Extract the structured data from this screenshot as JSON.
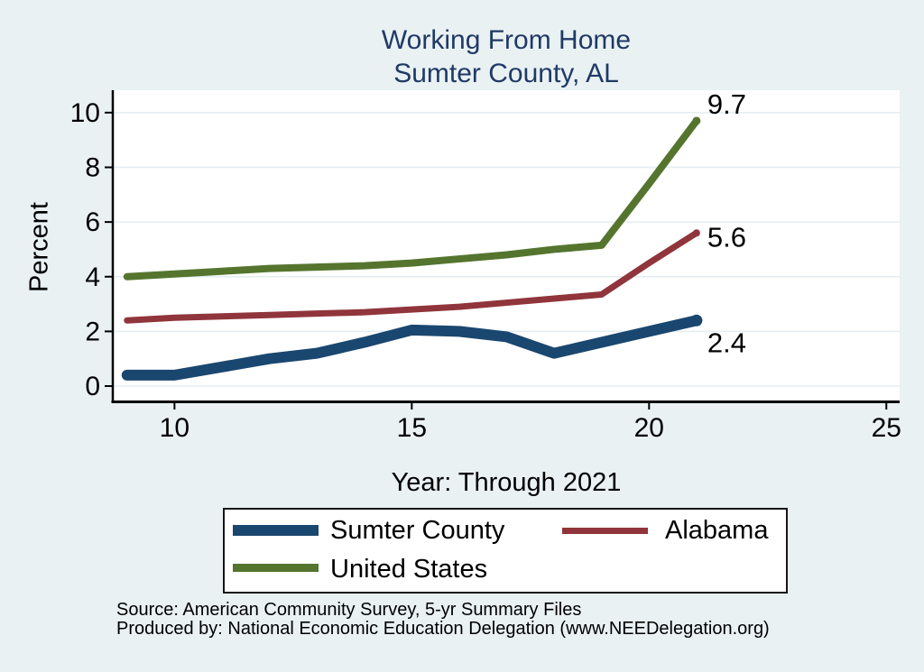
{
  "notes": {
    "source": "Source: American Community Survey, 5-yr Summary Files",
    "produced_by": "Produced by: National Economic Education Delegation (www.NEEDelegation.org)"
  },
  "colors": {
    "page_background": "#e9f1f3",
    "plot_background": "#ffffff",
    "gridline": "#e3edf0",
    "axis": "#000000",
    "title_text": "#203a66",
    "label_text": "#000000",
    "legend_border": "#161616"
  },
  "chart_data": {
    "type": "line",
    "title": "Working From Home",
    "subtitle": "Sumter County, AL",
    "xlabel": "Year: Through 2021",
    "ylabel": "Percent",
    "x_note": "two-digit years, data 2009 through 2021",
    "x": [
      9,
      10,
      11,
      12,
      13,
      14,
      15,
      16,
      17,
      18,
      19,
      20,
      21
    ],
    "x_ticks": [
      10,
      15,
      20,
      25
    ],
    "y_ticks": [
      0,
      2,
      4,
      6,
      8,
      10
    ],
    "xlim": [
      8.7,
      25.28
    ],
    "ylim": [
      -0.56,
      10.82
    ],
    "grid": true,
    "legend_position": "bottom",
    "series": [
      {
        "name": "Sumter County",
        "color": "#1a476f",
        "line_width": 12,
        "end_label": "2.4",
        "end_label_dy": 35,
        "values": [
          0.4,
          0.4,
          0.7,
          1.0,
          1.2,
          1.6,
          2.05,
          2.0,
          1.8,
          1.2,
          1.6,
          2.0,
          2.4
        ]
      },
      {
        "name": "Alabama",
        "color": "#90353b",
        "line_width": 7,
        "end_label": "5.6",
        "end_label_dy": 15,
        "values": [
          2.4,
          2.5,
          2.55,
          2.6,
          2.65,
          2.7,
          2.8,
          2.9,
          3.05,
          3.2,
          3.35,
          4.5,
          5.6
        ]
      },
      {
        "name": "United States",
        "color": "#55752f",
        "line_width": 8,
        "end_label": "9.7",
        "end_label_dy": -8,
        "values": [
          4.0,
          4.1,
          4.2,
          4.3,
          4.35,
          4.4,
          4.5,
          4.65,
          4.8,
          5.0,
          5.15,
          7.4,
          9.7
        ]
      }
    ]
  }
}
